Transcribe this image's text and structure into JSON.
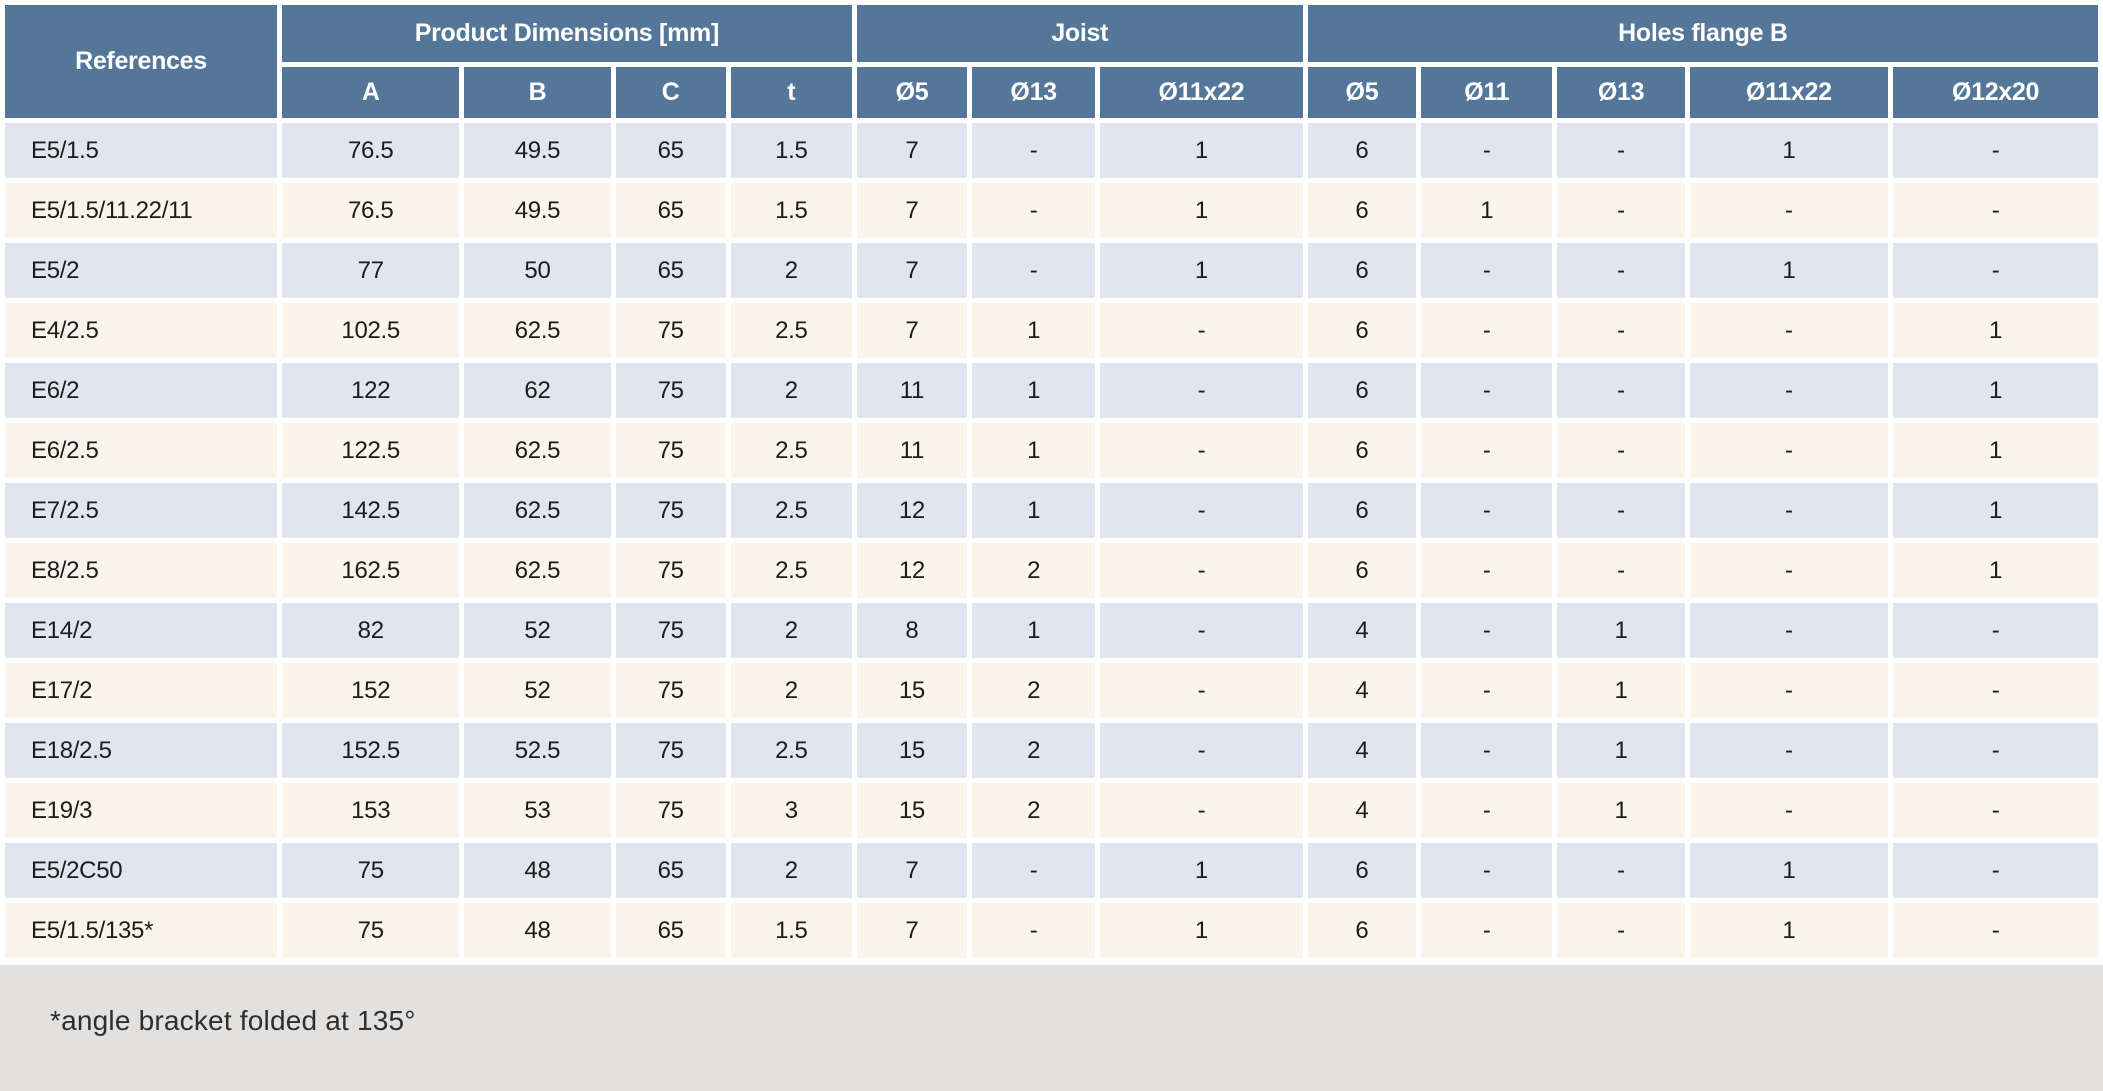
{
  "colors": {
    "header_blue": "#547699",
    "row_light_blue": "#e0e5ef",
    "row_cream": "#faf4ea",
    "footer_grey": "#e2e1e0",
    "gridline": "#ffffff",
    "header_text": "#ffffff",
    "body_text": "#1c1c1c"
  },
  "table": {
    "header": {
      "references_label": "References",
      "groups": [
        {
          "label": "Product Dimensions [mm]",
          "columns": [
            "A",
            "B",
            "C",
            "t"
          ]
        },
        {
          "label": "Joist",
          "columns": [
            "Ø5",
            "Ø13",
            "Ø11x22"
          ]
        },
        {
          "label": "Holes flange B",
          "columns": [
            "Ø5",
            "Ø11",
            "Ø13",
            "Ø11x22",
            "Ø12x20"
          ]
        }
      ]
    },
    "rows": [
      {
        "reference": "E5/1.5",
        "values": [
          "76.5",
          "49.5",
          "65",
          "1.5",
          "7",
          "-",
          "1",
          "6",
          "-",
          "-",
          "1",
          "-"
        ]
      },
      {
        "reference": "E5/1.5/11.22/11",
        "values": [
          "76.5",
          "49.5",
          "65",
          "1.5",
          "7",
          "-",
          "1",
          "6",
          "1",
          "-",
          "-",
          "-"
        ]
      },
      {
        "reference": "E5/2",
        "values": [
          "77",
          "50",
          "65",
          "2",
          "7",
          "-",
          "1",
          "6",
          "-",
          "-",
          "1",
          "-"
        ]
      },
      {
        "reference": "E4/2.5",
        "values": [
          "102.5",
          "62.5",
          "75",
          "2.5",
          "7",
          "1",
          "-",
          "6",
          "-",
          "-",
          "-",
          "1"
        ]
      },
      {
        "reference": "E6/2",
        "values": [
          "122",
          "62",
          "75",
          "2",
          "11",
          "1",
          "-",
          "6",
          "-",
          "-",
          "-",
          "1"
        ]
      },
      {
        "reference": "E6/2.5",
        "values": [
          "122.5",
          "62.5",
          "75",
          "2.5",
          "11",
          "1",
          "-",
          "6",
          "-",
          "-",
          "-",
          "1"
        ]
      },
      {
        "reference": "E7/2.5",
        "values": [
          "142.5",
          "62.5",
          "75",
          "2.5",
          "12",
          "1",
          "-",
          "6",
          "-",
          "-",
          "-",
          "1"
        ]
      },
      {
        "reference": "E8/2.5",
        "values": [
          "162.5",
          "62.5",
          "75",
          "2.5",
          "12",
          "2",
          "-",
          "6",
          "-",
          "-",
          "-",
          "1"
        ]
      },
      {
        "reference": "E14/2",
        "values": [
          "82",
          "52",
          "75",
          "2",
          "8",
          "1",
          "-",
          "4",
          "-",
          "1",
          "-",
          "-"
        ]
      },
      {
        "reference": "E17/2",
        "values": [
          "152",
          "52",
          "75",
          "2",
          "15",
          "2",
          "-",
          "4",
          "-",
          "1",
          "-",
          "-"
        ]
      },
      {
        "reference": "E18/2.5",
        "values": [
          "152.5",
          "52.5",
          "75",
          "2.5",
          "15",
          "2",
          "-",
          "4",
          "-",
          "1",
          "-",
          "-"
        ]
      },
      {
        "reference": "E19/3",
        "values": [
          "153",
          "53",
          "75",
          "3",
          "15",
          "2",
          "-",
          "4",
          "-",
          "1",
          "-",
          "-"
        ]
      },
      {
        "reference": "E5/2C50",
        "values": [
          "75",
          "48",
          "65",
          "2",
          "7",
          "-",
          "1",
          "6",
          "-",
          "-",
          "1",
          "-"
        ]
      },
      {
        "reference": "E5/1.5/135*",
        "values": [
          "75",
          "48",
          "65",
          "1.5",
          "7",
          "-",
          "1",
          "6",
          "-",
          "-",
          "1",
          "-"
        ]
      }
    ],
    "footnote": "*angle bracket folded at 135°"
  }
}
